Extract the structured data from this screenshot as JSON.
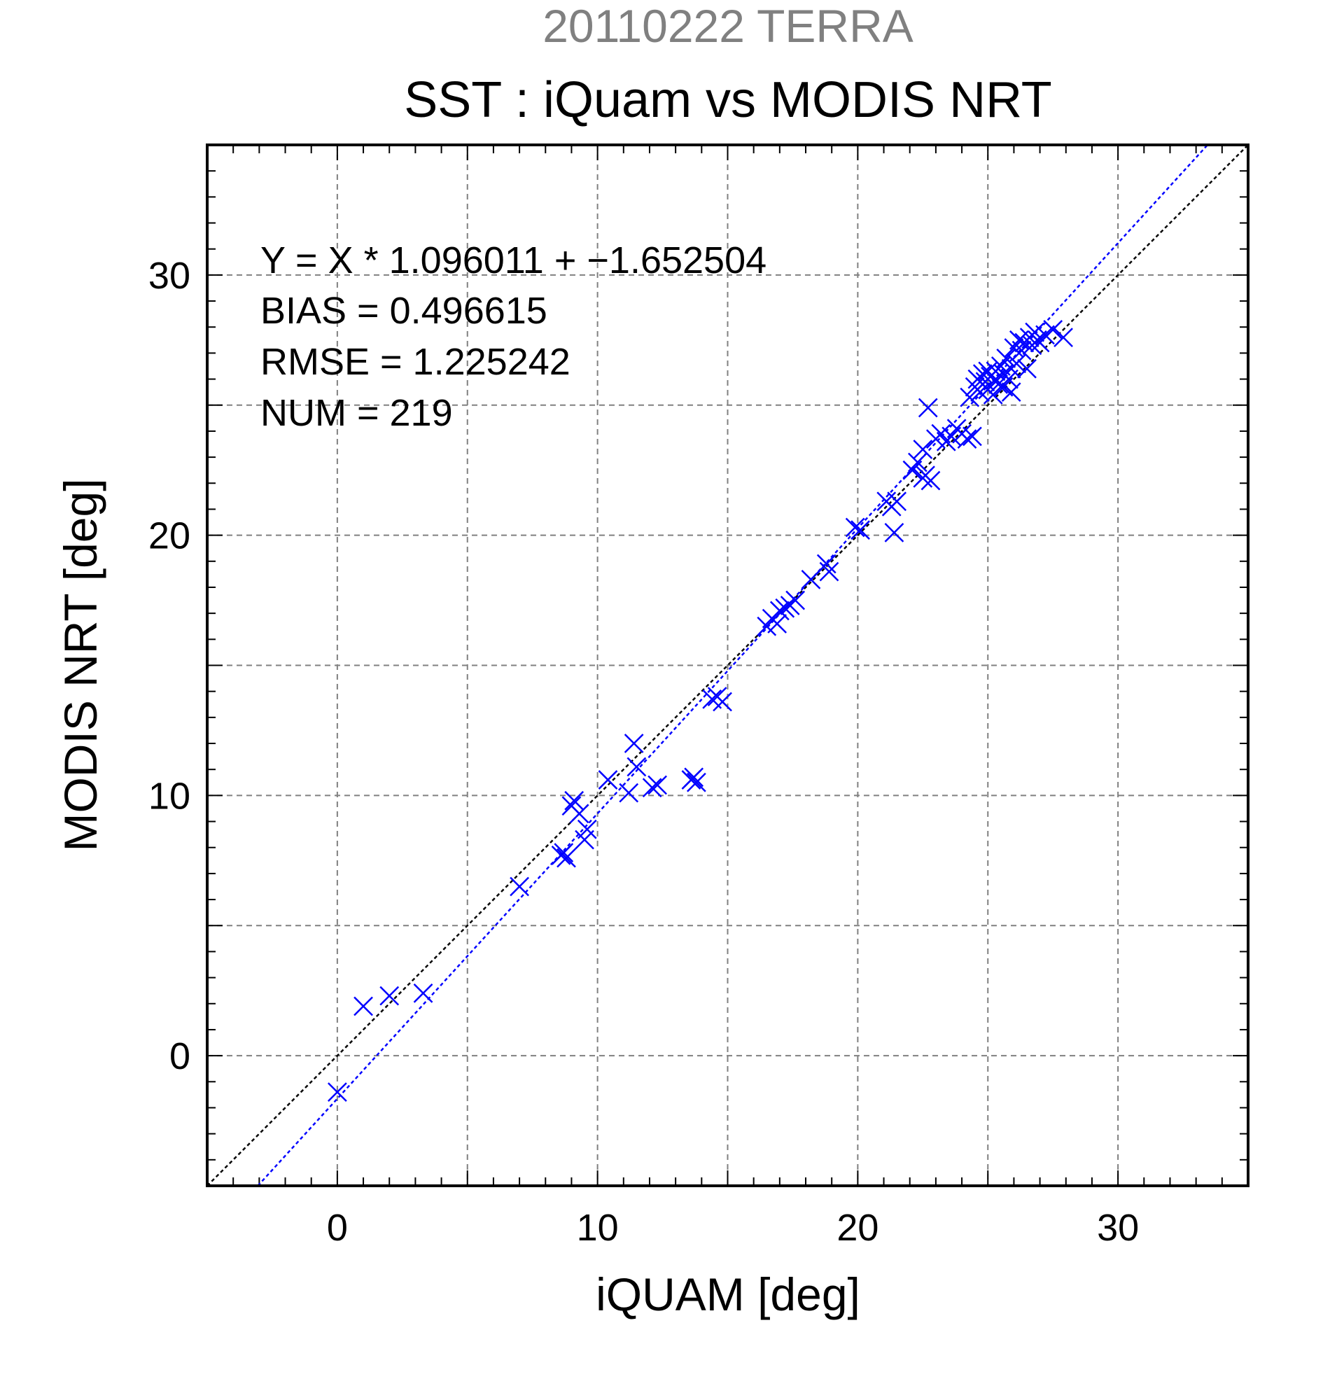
{
  "chart_data": {
    "type": "scatter",
    "title": "20110222 TERRA",
    "subtitle": "SST : iQuam vs MODIS NRT",
    "xlabel": "iQUAM [deg]",
    "ylabel": "MODIS NRT [deg]",
    "xlim": [
      -5,
      35
    ],
    "ylim": [
      -5,
      35
    ],
    "xticks": [
      0,
      10,
      20,
      30
    ],
    "yticks": [
      0,
      10,
      20,
      30
    ],
    "grid": true,
    "annotations": [
      "Y = X * 1.096011 + −1.652504",
      "BIAS = 0.496615",
      "RMSE = 1.225242",
      "NUM = 219"
    ],
    "regression": {
      "slope": 1.096011,
      "intercept": -1.652504
    },
    "colors": {
      "points": "#0000ff",
      "fit_line": "#0000ff",
      "identity_line": "#000000",
      "title": "#808080",
      "grid": "#808080"
    },
    "points": [
      [
        0.0,
        -1.4
      ],
      [
        1.0,
        1.9
      ],
      [
        2.0,
        2.3
      ],
      [
        3.3,
        2.4
      ],
      [
        7.0,
        6.5
      ],
      [
        8.6,
        7.7
      ],
      [
        8.7,
        7.8
      ],
      [
        8.8,
        7.6
      ],
      [
        9.0,
        9.6
      ],
      [
        9.1,
        9.8
      ],
      [
        9.3,
        9.3
      ],
      [
        9.5,
        8.3
      ],
      [
        9.6,
        8.7
      ],
      [
        10.4,
        10.6
      ],
      [
        11.2,
        10.1
      ],
      [
        11.4,
        12.0
      ],
      [
        11.5,
        11.1
      ],
      [
        12.1,
        10.3
      ],
      [
        12.3,
        10.4
      ],
      [
        13.6,
        10.6
      ],
      [
        13.7,
        10.7
      ],
      [
        13.8,
        10.5
      ],
      [
        14.4,
        13.7
      ],
      [
        14.6,
        13.8
      ],
      [
        14.8,
        13.6
      ],
      [
        16.5,
        16.5
      ],
      [
        16.7,
        16.8
      ],
      [
        16.9,
        16.6
      ],
      [
        17.0,
        17.1
      ],
      [
        17.2,
        17.2
      ],
      [
        17.4,
        17.3
      ],
      [
        17.6,
        17.5
      ],
      [
        18.2,
        18.3
      ],
      [
        18.8,
        18.9
      ],
      [
        18.9,
        18.6
      ],
      [
        19.9,
        20.3
      ],
      [
        20.1,
        20.2
      ],
      [
        21.1,
        21.3
      ],
      [
        21.3,
        21.1
      ],
      [
        21.4,
        20.1
      ],
      [
        21.5,
        21.3
      ],
      [
        22.1,
        22.5
      ],
      [
        22.3,
        22.8
      ],
      [
        22.5,
        22.2
      ],
      [
        22.6,
        22.3
      ],
      [
        22.8,
        22.1
      ],
      [
        22.5,
        23.3
      ],
      [
        22.7,
        24.9
      ],
      [
        23.0,
        23.7
      ],
      [
        23.2,
        23.9
      ],
      [
        23.4,
        23.6
      ],
      [
        23.6,
        23.8
      ],
      [
        23.8,
        24.1
      ],
      [
        24.0,
        23.9
      ],
      [
        24.2,
        23.7
      ],
      [
        24.4,
        23.8
      ],
      [
        24.3,
        25.3
      ],
      [
        24.5,
        25.7
      ],
      [
        24.6,
        26.0
      ],
      [
        24.7,
        25.5
      ],
      [
        24.8,
        26.2
      ],
      [
        24.9,
        25.9
      ],
      [
        25.0,
        25.6
      ],
      [
        25.1,
        26.1
      ],
      [
        25.2,
        25.4
      ],
      [
        25.3,
        26.3
      ],
      [
        25.4,
        25.8
      ],
      [
        25.5,
        26.5
      ],
      [
        25.6,
        25.7
      ],
      [
        25.7,
        26.8
      ],
      [
        25.8,
        26.0
      ],
      [
        25.9,
        26.4
      ],
      [
        26.0,
        27.2
      ],
      [
        26.1,
        26.6
      ],
      [
        26.2,
        27.5
      ],
      [
        26.3,
        27.1
      ],
      [
        26.4,
        27.4
      ],
      [
        26.5,
        26.4
      ],
      [
        26.6,
        27.6
      ],
      [
        26.7,
        27.3
      ],
      [
        26.8,
        27.8
      ],
      [
        26.9,
        27.5
      ],
      [
        27.0,
        27.4
      ],
      [
        27.2,
        27.7
      ],
      [
        27.5,
        27.9
      ],
      [
        27.9,
        27.6
      ],
      [
        25.0,
        26.3
      ],
      [
        25.3,
        26.0
      ],
      [
        25.6,
        26.2
      ],
      [
        24.8,
        25.8
      ],
      [
        25.9,
        25.5
      ]
    ]
  }
}
